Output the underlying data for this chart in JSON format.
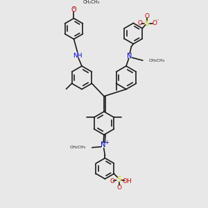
{
  "background_color": "#e8e8e8",
  "bg_hex": "#e8e8e8",
  "bond_color": "#1a1a1a",
  "N_color": "#0000cc",
  "O_color": "#cc0000",
  "S_color": "#cccc00",
  "lw": 1.2,
  "r_large": 0.58,
  "r_small": 0.52,
  "xlim": [
    0,
    10
  ],
  "ylim": [
    0,
    10
  ]
}
